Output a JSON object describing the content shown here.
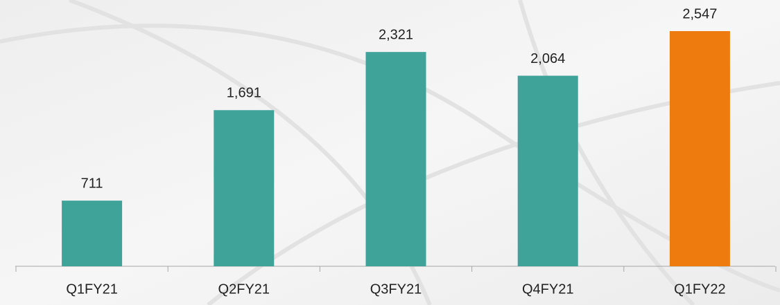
{
  "chart_data": {
    "type": "bar",
    "categories": [
      "Q1FY21",
      "Q2FY21",
      "Q3FY21",
      "Q4FY21",
      "Q1FY22"
    ],
    "values": [
      711,
      1691,
      2321,
      2064,
      2547
    ],
    "value_labels": [
      "711",
      "1,691",
      "2,321",
      "2,064",
      "2,547"
    ],
    "colors": [
      "#3fa39a",
      "#3fa39a",
      "#3fa39a",
      "#3fa39a",
      "#ee7b0e"
    ]
  }
}
